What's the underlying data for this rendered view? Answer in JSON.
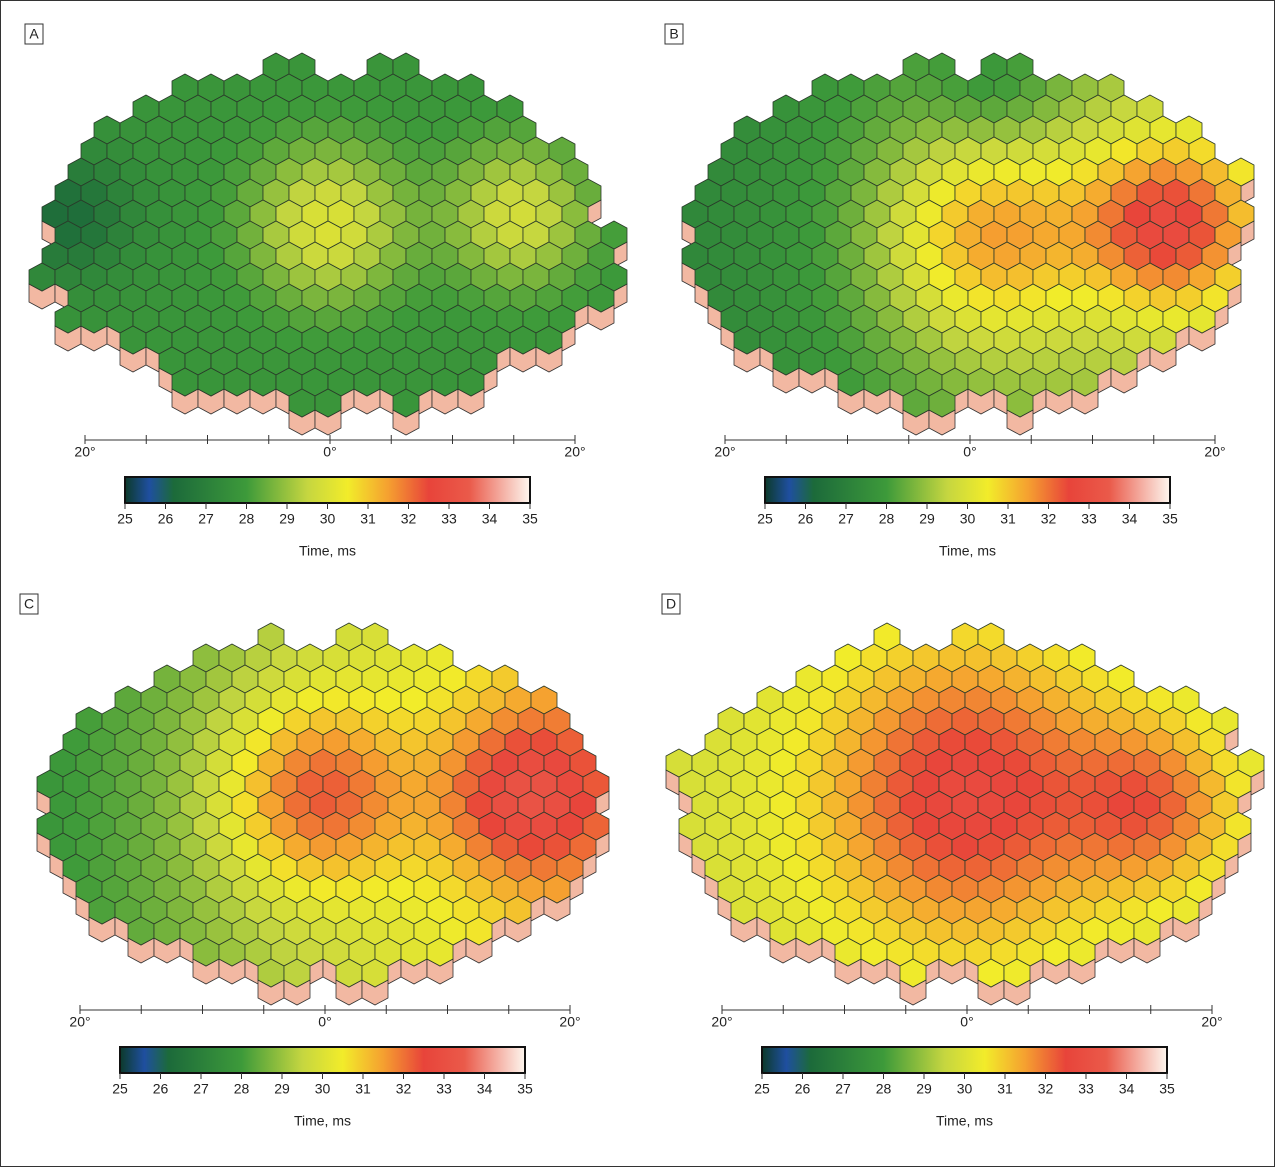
{
  "panels": [
    {
      "label": "A",
      "x_axis": {
        "ticks": [
          "20°",
          "0°",
          "20°"
        ]
      },
      "colorbar": {
        "lim": [
          25,
          35
        ],
        "ticks": [
          25,
          26,
          27,
          28,
          29,
          30,
          31,
          32,
          33,
          34,
          35
        ],
        "label": "Time, ms"
      }
    },
    {
      "label": "B",
      "x_axis": {
        "ticks": [
          "20°",
          "0°",
          "20°"
        ]
      },
      "colorbar": {
        "lim": [
          25,
          35
        ],
        "ticks": [
          25,
          26,
          27,
          28,
          29,
          30,
          31,
          32,
          33,
          34,
          35
        ],
        "label": "Time, ms"
      }
    },
    {
      "label": "C",
      "x_axis": {
        "ticks": [
          "20°",
          "0°",
          "20°"
        ]
      },
      "colorbar": {
        "lim": [
          25,
          35
        ],
        "ticks": [
          25,
          26,
          27,
          28,
          29,
          30,
          31,
          32,
          33,
          34,
          35
        ],
        "label": "Time, ms"
      }
    },
    {
      "label": "D",
      "x_axis": {
        "ticks": [
          "20°",
          "0°",
          "20°"
        ]
      },
      "colorbar": {
        "lim": [
          25,
          35
        ],
        "ticks": [
          25,
          26,
          27,
          28,
          29,
          30,
          31,
          32,
          33,
          34,
          35
        ],
        "label": "Time, ms"
      }
    }
  ]
}
